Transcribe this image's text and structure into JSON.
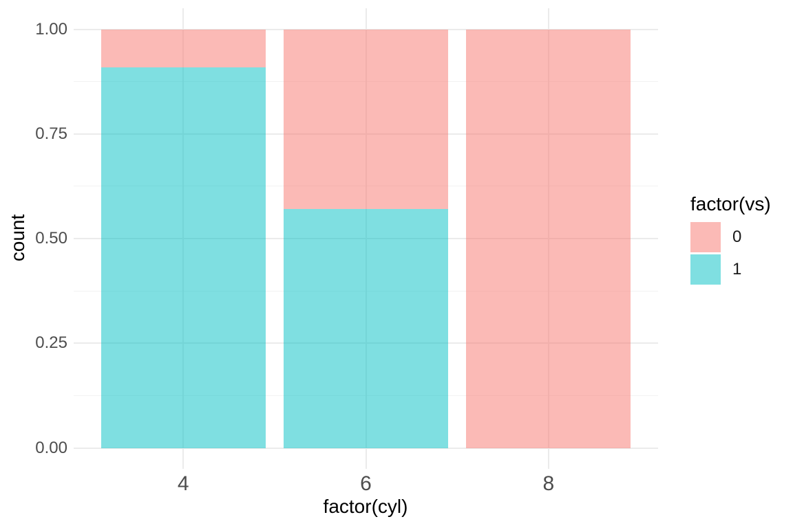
{
  "chart_data": {
    "type": "bar",
    "subtype": "stacked-fill-proportion",
    "title": "",
    "xlabel": "factor(cyl)",
    "ylabel": "count",
    "categories": [
      "4",
      "6",
      "8"
    ],
    "series": [
      {
        "name": "0",
        "color": "#F8766D",
        "alpha": 0.5,
        "values": [
          0.091,
          0.429,
          1.0
        ]
      },
      {
        "name": "1",
        "color": "#00BFC4",
        "alpha": 0.5,
        "values": [
          0.909,
          0.571,
          0.0
        ]
      }
    ],
    "stack_order_top_to_bottom": [
      "0",
      "1"
    ],
    "y_ticks": [
      0,
      0.25,
      0.5,
      0.75,
      1
    ],
    "y_tick_labels": [
      "0.00",
      "0.25",
      "0.50",
      "0.75",
      "1.00"
    ],
    "x_tick_labels": [
      "4",
      "6",
      "8"
    ],
    "ylim": [
      0,
      1
    ],
    "grid": {
      "major": true,
      "minor": true
    },
    "legend": {
      "title": "factor(vs)",
      "position": "right",
      "entries": [
        "0",
        "1"
      ]
    }
  },
  "style": {
    "background": "#FFFFFF",
    "grid_major_color": "#EBEBEB",
    "grid_minor_color": "#F2F2F2",
    "tick_label_color": "#4D4D4D",
    "axis_title_color": "#000000",
    "legend_title_color": "#000000",
    "legend_label_color": "#1A1A1A"
  }
}
